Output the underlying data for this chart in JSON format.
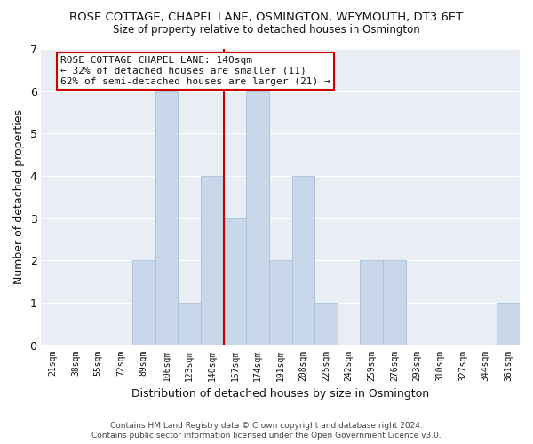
{
  "title": "ROSE COTTAGE, CHAPEL LANE, OSMINGTON, WEYMOUTH, DT3 6ET",
  "subtitle": "Size of property relative to detached houses in Osmington",
  "xlabel": "Distribution of detached houses by size in Osmington",
  "ylabel": "Number of detached properties",
  "footer_lines": [
    "Contains HM Land Registry data © Crown copyright and database right 2024.",
    "Contains public sector information licensed under the Open Government Licence v3.0."
  ],
  "bin_labels": [
    "21sqm",
    "38sqm",
    "55sqm",
    "72sqm",
    "89sqm",
    "106sqm",
    "123sqm",
    "140sqm",
    "157sqm",
    "174sqm",
    "191sqm",
    "208sqm",
    "225sqm",
    "242sqm",
    "259sqm",
    "276sqm",
    "293sqm",
    "310sqm",
    "327sqm",
    "344sqm",
    "361sqm"
  ],
  "bar_values": [
    0,
    0,
    0,
    0,
    2,
    6,
    1,
    4,
    3,
    6,
    2,
    4,
    1,
    0,
    2,
    2,
    0,
    0,
    0,
    0,
    1
  ],
  "bar_color": "#c8d8ea",
  "bar_edge_color": "#a8c0d8",
  "highlight_bin_index": 7,
  "highlight_line_color": "#cc0000",
  "ylim": [
    0,
    7
  ],
  "yticks": [
    0,
    1,
    2,
    3,
    4,
    5,
    6,
    7
  ],
  "annotation_text": "ROSE COTTAGE CHAPEL LANE: 140sqm\n← 32% of detached houses are smaller (11)\n62% of semi-detached houses are larger (21) →",
  "annotation_box_color": "#ffffff",
  "annotation_box_edge_color": "#cc0000",
  "figure_bg": "#ffffff",
  "plot_bg": "#e8eef4",
  "grid_color": "#ffffff",
  "text_color": "#111111",
  "footer_color": "#444444"
}
